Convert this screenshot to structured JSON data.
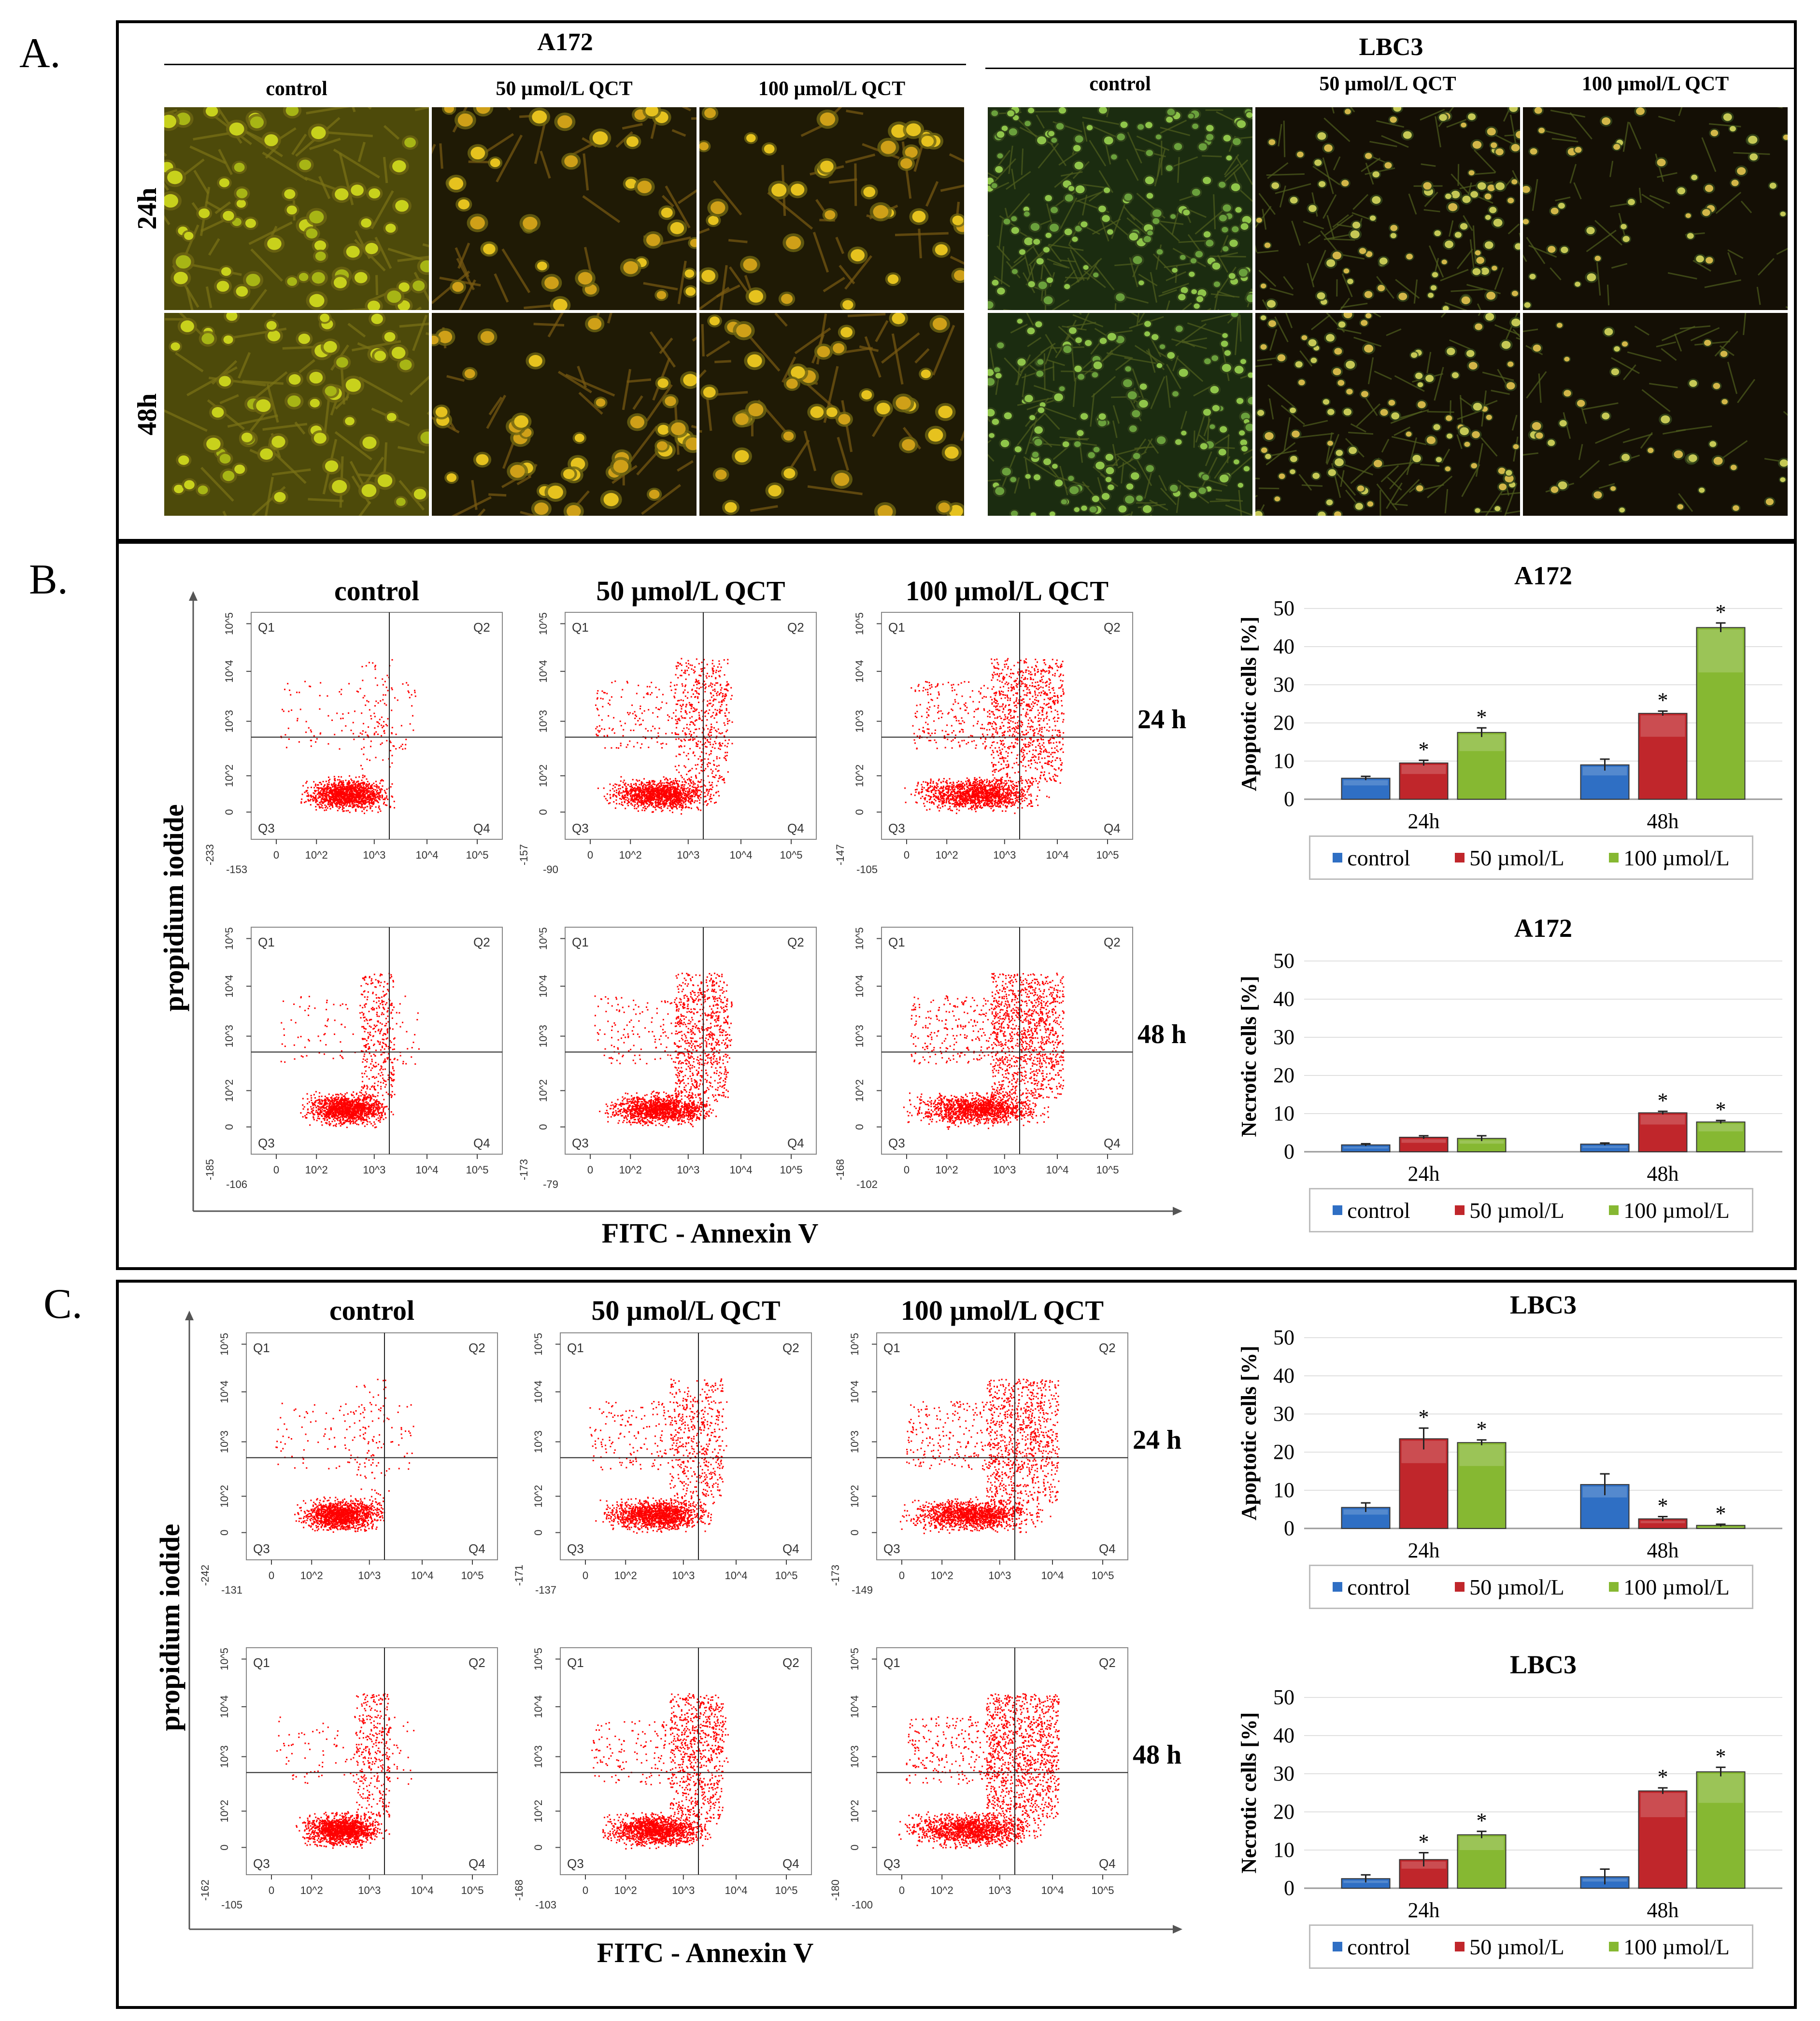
{
  "panels": {
    "a": {
      "letter": "A."
    },
    "b": {
      "letter": "B."
    },
    "c": {
      "letter": "C."
    }
  },
  "panel_a": {
    "groups": [
      "A172",
      "LBC3"
    ],
    "conditions": [
      "control",
      "50 µmol/L QCT",
      "100 µmol/L QCT"
    ],
    "rows": [
      "24h",
      "48h"
    ]
  },
  "facs": {
    "conditions": [
      "control",
      "50 µmol/L QCT",
      "100 µmol/L QCT"
    ],
    "rows": [
      "24 h",
      "48 h"
    ],
    "y_title": "propidium iodide",
    "x_title": "FITC - Annexin V",
    "quadrants": [
      "Q1",
      "Q2",
      "Q3",
      "Q4"
    ],
    "y_ticks": [
      "10^5",
      "10^4",
      "10^3",
      "10^2",
      "0"
    ],
    "x_ticks": [
      "0",
      "10^2",
      "10^3",
      "10^4",
      "10^5"
    ],
    "neg_labels": {
      "b": [
        {
          "y": "-233",
          "x": "-153"
        },
        {
          "y": "-157",
          "x": "-90"
        },
        {
          "y": "-147",
          "x": "-105"
        },
        {
          "y": "-185",
          "x": "-106"
        },
        {
          "y": "-173",
          "x": "-79"
        },
        {
          "y": "-168",
          "x": "-102"
        }
      ],
      "c": [
        {
          "y": "-242",
          "x": "-131"
        },
        {
          "y": "-171",
          "x": "-137"
        },
        {
          "y": "-173",
          "x": "-149"
        },
        {
          "y": "-162",
          "x": "-105"
        },
        {
          "y": "-168",
          "x": "-103"
        },
        {
          "y": "-180",
          "x": "-100"
        }
      ]
    }
  },
  "colors": {
    "control": "#2f6fc4",
    "50": "#c0262b",
    "100": "#86b832",
    "facs_dot": "#ff0000"
  },
  "chart_data": [
    {
      "type": "bar",
      "id": "b-apoptotic",
      "title": "A172",
      "ylabel": "Apoptotic cells [%]",
      "categories": [
        "24h",
        "48h"
      ],
      "ylim": [
        0,
        50
      ],
      "yticks": [
        0,
        10,
        20,
        30,
        40,
        50
      ],
      "series": [
        {
          "name": "control",
          "values": [
            5.5,
            9
          ],
          "err": [
            0.5,
            1.5
          ],
          "star": [
            false,
            false
          ]
        },
        {
          "name": "50 µmol/L",
          "values": [
            9.5,
            22.5
          ],
          "err": [
            0.7,
            0.6
          ],
          "star": [
            true,
            true
          ]
        },
        {
          "name": "100 µmol/L",
          "values": [
            17.5,
            45
          ],
          "err": [
            1.2,
            1.2
          ],
          "star": [
            true,
            true
          ]
        }
      ],
      "legend": "bottom"
    },
    {
      "type": "bar",
      "id": "b-necrotic",
      "title": "A172",
      "ylabel": "Necrotic cells [%]",
      "categories": [
        "24h",
        "48h"
      ],
      "ylim": [
        0,
        50
      ],
      "yticks": [
        0,
        10,
        20,
        30,
        40,
        50
      ],
      "series": [
        {
          "name": "control",
          "values": [
            1.8,
            2
          ],
          "err": [
            0.3,
            0.3
          ],
          "star": [
            false,
            false
          ]
        },
        {
          "name": "50 µmol/L",
          "values": [
            3.8,
            10.2
          ],
          "err": [
            0.4,
            0.4
          ],
          "star": [
            false,
            true
          ]
        },
        {
          "name": "100 µmol/L",
          "values": [
            3.5,
            7.8
          ],
          "err": [
            0.7,
            0.4
          ],
          "star": [
            false,
            true
          ]
        }
      ],
      "legend": "bottom"
    },
    {
      "type": "bar",
      "id": "c-apoptotic",
      "title": "LBC3",
      "ylabel": "Apoptotic cells [%]",
      "categories": [
        "24h",
        "48h"
      ],
      "ylim": [
        0,
        50
      ],
      "yticks": [
        0,
        10,
        20,
        30,
        40,
        50
      ],
      "series": [
        {
          "name": "control",
          "values": [
            5.5,
            11.5
          ],
          "err": [
            1.2,
            2.8
          ],
          "star": [
            false,
            false
          ]
        },
        {
          "name": "50 µmol/L",
          "values": [
            23.5,
            2.5
          ],
          "err": [
            2.8,
            0.6
          ],
          "star": [
            true,
            true
          ]
        },
        {
          "name": "100 µmol/L",
          "values": [
            22.5,
            0.8
          ],
          "err": [
            0.7,
            0.3
          ],
          "star": [
            true,
            true
          ]
        }
      ],
      "legend": "bottom"
    },
    {
      "type": "bar",
      "id": "c-necrotic",
      "title": "LBC3",
      "ylabel": "Necrotic cells [%]",
      "categories": [
        "24h",
        "48h"
      ],
      "ylim": [
        0,
        50
      ],
      "yticks": [
        0,
        10,
        20,
        30,
        40,
        50
      ],
      "series": [
        {
          "name": "control",
          "values": [
            2.5,
            3
          ],
          "err": [
            1,
            2
          ],
          "star": [
            false,
            false
          ]
        },
        {
          "name": "50 µmol/L",
          "values": [
            7.5,
            25.5
          ],
          "err": [
            1.8,
            0.8
          ],
          "star": [
            true,
            true
          ]
        },
        {
          "name": "100 µmol/L",
          "values": [
            14,
            30.5
          ],
          "err": [
            0.9,
            1.2
          ],
          "star": [
            true,
            true
          ]
        }
      ],
      "legend": "bottom"
    }
  ]
}
